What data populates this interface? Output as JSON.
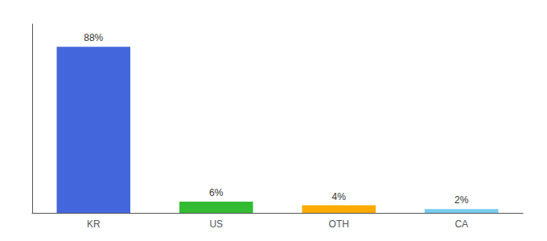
{
  "chart_data": {
    "type": "bar",
    "categories": [
      "KR",
      "US",
      "OTH",
      "CA"
    ],
    "values": [
      88,
      6,
      4,
      2
    ],
    "colors": [
      "#4466dd",
      "#33bb33",
      "#ffaa00",
      "#77ccee"
    ],
    "ylim": [
      0,
      100
    ],
    "data_labels": true,
    "value_labels": [
      "88%",
      "6%",
      "4%",
      "2%"
    ],
    "tick_labels": "x",
    "grid": false
  }
}
